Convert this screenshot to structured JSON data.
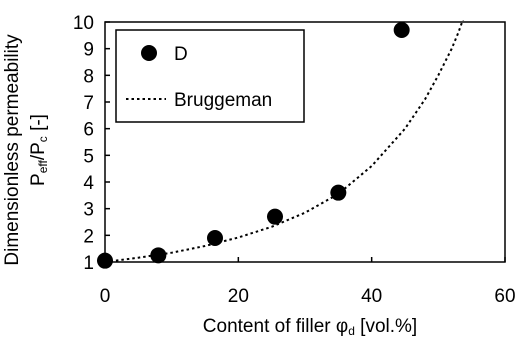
{
  "chart_data": {
    "type": "scatter",
    "title": "",
    "xlabel": {
      "main": "Content of filler ",
      "symbol": "φ",
      "sub": "d",
      "unit": " [vol.%]"
    },
    "ylabel": {
      "line1": "Dimensionless permeability",
      "p1": "P",
      "sub1": "eff",
      "slash": "/P",
      "sub2": "c",
      "unit": " [-]"
    },
    "xlim": [
      0,
      60
    ],
    "ylim": [
      1,
      10
    ],
    "xticks": [
      0,
      20,
      40,
      60
    ],
    "yticks": [
      1,
      2,
      3,
      4,
      5,
      6,
      7,
      8,
      9,
      10
    ],
    "grid": false,
    "legend_position": "top-left",
    "series": [
      {
        "name": "D",
        "kind": "markers",
        "color": "#000000",
        "x": [
          0,
          8,
          16.5,
          25.5,
          35,
          44.5
        ],
        "y": [
          1.05,
          1.25,
          1.9,
          2.7,
          3.6,
          9.7
        ]
      },
      {
        "name": "Bruggeman",
        "kind": "dotted-line",
        "color": "#000000",
        "x": [
          0,
          5,
          10,
          15,
          20,
          25,
          30,
          35,
          40,
          45,
          48,
          50,
          52,
          53,
          54
        ],
        "y": [
          1.0,
          1.16,
          1.35,
          1.6,
          1.92,
          2.32,
          2.85,
          3.55,
          4.6,
          6.0,
          7.1,
          8.0,
          9.0,
          9.6,
          10.3
        ]
      }
    ]
  }
}
